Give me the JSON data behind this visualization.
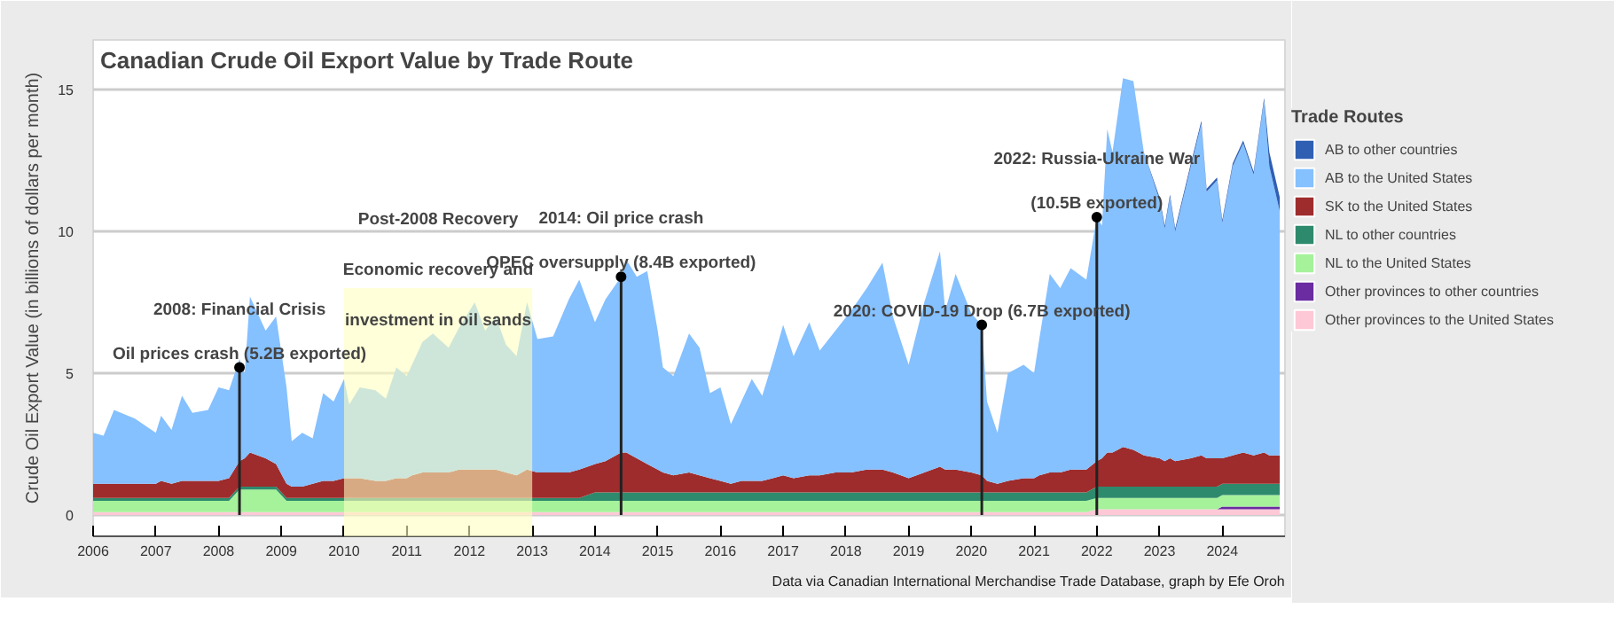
{
  "chart_data": {
    "type": "area",
    "stacked": true,
    "title": "Canadian Crude Oil Export Value by Trade Route",
    "ylabel": "Crude Oil Export Value (in billions of dollars per month)",
    "legend_title": "Trade Routes",
    "legend": "right",
    "grid": "y",
    "x": [
      "2006-01",
      "2006-03",
      "2006-05",
      "2006-09",
      "2007-01",
      "2007-02",
      "2007-04",
      "2007-06",
      "2007-08",
      "2007-11",
      "2008-01",
      "2008-03",
      "2008-05",
      "2008-06",
      "2008-07",
      "2008-10",
      "2008-12",
      "2009-02",
      "2009-03",
      "2009-05",
      "2009-07",
      "2009-09",
      "2009-11",
      "2010-01",
      "2010-02",
      "2010-04",
      "2010-07",
      "2010-09",
      "2010-11",
      "2011-01",
      "2011-02",
      "2011-04",
      "2011-06",
      "2011-09",
      "2011-11",
      "2012-02",
      "2012-04",
      "2012-06",
      "2012-08",
      "2012-10",
      "2012-12",
      "2013-02",
      "2013-05",
      "2013-08",
      "2013-10",
      "2014-01",
      "2014-03",
      "2014-06",
      "2014-07",
      "2014-09",
      "2014-11",
      "2015-01",
      "2015-02",
      "2015-04",
      "2015-07",
      "2015-09",
      "2015-11",
      "2016-01",
      "2016-03",
      "2016-05",
      "2016-07",
      "2016-09",
      "2016-11",
      "2017-01",
      "2017-03",
      "2017-06",
      "2017-08",
      "2017-11",
      "2018-02",
      "2018-05",
      "2018-08",
      "2018-10",
      "2019-01",
      "2019-04",
      "2019-07",
      "2019-08",
      "2019-10",
      "2020-01",
      "2020-03",
      "2020-04",
      "2020-06",
      "2020-08",
      "2020-11",
      "2021-01",
      "2021-02",
      "2021-04",
      "2021-06",
      "2021-08",
      "2021-11",
      "2022-01",
      "2022-02",
      "2022-03",
      "2022-04",
      "2022-06",
      "2022-08",
      "2022-10",
      "2023-01",
      "2023-02",
      "2023-03",
      "2023-04",
      "2023-07",
      "2023-09",
      "2023-10",
      "2023-12",
      "2024-01",
      "2024-03",
      "2024-05",
      "2024-07",
      "2024-09",
      "2024-10",
      "2024-12"
    ],
    "series": [
      {
        "name": "Other provinces to the United States",
        "color": "#ffc8d6",
        "values": [
          0.1,
          0.1,
          0.1,
          0.1,
          0.1,
          0.1,
          0.1,
          0.1,
          0.1,
          0.1,
          0.1,
          0.1,
          0.1,
          0.1,
          0.1,
          0.1,
          0.1,
          0.1,
          0.1,
          0.1,
          0.1,
          0.1,
          0.1,
          0.1,
          0.1,
          0.1,
          0.1,
          0.1,
          0.1,
          0.1,
          0.1,
          0.1,
          0.1,
          0.1,
          0.1,
          0.1,
          0.1,
          0.1,
          0.1,
          0.1,
          0.1,
          0.1,
          0.1,
          0.1,
          0.1,
          0.1,
          0.1,
          0.1,
          0.1,
          0.1,
          0.1,
          0.1,
          0.1,
          0.1,
          0.1,
          0.1,
          0.1,
          0.1,
          0.1,
          0.1,
          0.1,
          0.1,
          0.1,
          0.1,
          0.1,
          0.1,
          0.1,
          0.1,
          0.1,
          0.1,
          0.1,
          0.1,
          0.1,
          0.1,
          0.1,
          0.1,
          0.1,
          0.1,
          0.1,
          0.1,
          0.1,
          0.1,
          0.1,
          0.1,
          0.1,
          0.1,
          0.1,
          0.1,
          0.1,
          0.2,
          0.2,
          0.2,
          0.2,
          0.2,
          0.2,
          0.2,
          0.2,
          0.2,
          0.2,
          0.2,
          0.2,
          0.2,
          0.2,
          0.2,
          0.2,
          0.2,
          0.2,
          0.2,
          0.2,
          0.2,
          0.2
        ]
      },
      {
        "name": "Other provinces to other countries",
        "color": "#6a2ca0",
        "values": [
          0,
          0,
          0,
          0,
          0,
          0,
          0,
          0,
          0,
          0,
          0,
          0,
          0,
          0,
          0,
          0,
          0,
          0,
          0,
          0,
          0,
          0,
          0,
          0,
          0,
          0,
          0,
          0,
          0,
          0,
          0,
          0,
          0,
          0,
          0,
          0,
          0,
          0,
          0,
          0,
          0,
          0,
          0,
          0,
          0,
          0,
          0,
          0,
          0,
          0,
          0,
          0,
          0,
          0,
          0,
          0,
          0,
          0,
          0,
          0,
          0,
          0,
          0,
          0,
          0,
          0,
          0,
          0,
          0,
          0,
          0,
          0,
          0,
          0,
          0,
          0,
          0,
          0,
          0,
          0,
          0,
          0,
          0,
          0,
          0,
          0,
          0,
          0,
          0,
          0,
          0,
          0,
          0,
          0,
          0,
          0,
          0,
          0,
          0,
          0,
          0,
          0,
          0,
          0,
          0.1,
          0.1,
          0.1,
          0.1,
          0.1,
          0.1,
          0.1
        ]
      },
      {
        "name": "NL to the United States",
        "color": "#a6f29b",
        "values": [
          0.4,
          0.4,
          0.4,
          0.4,
          0.4,
          0.4,
          0.4,
          0.4,
          0.4,
          0.4,
          0.4,
          0.4,
          0.8,
          0.8,
          0.8,
          0.8,
          0.8,
          0.4,
          0.4,
          0.4,
          0.4,
          0.4,
          0.4,
          0.4,
          0.4,
          0.4,
          0.4,
          0.4,
          0.4,
          0.4,
          0.4,
          0.4,
          0.4,
          0.4,
          0.4,
          0.4,
          0.4,
          0.4,
          0.4,
          0.4,
          0.4,
          0.4,
          0.4,
          0.4,
          0.4,
          0.4,
          0.4,
          0.4,
          0.4,
          0.4,
          0.4,
          0.4,
          0.4,
          0.4,
          0.4,
          0.4,
          0.4,
          0.4,
          0.4,
          0.4,
          0.4,
          0.4,
          0.4,
          0.4,
          0.4,
          0.4,
          0.4,
          0.4,
          0.4,
          0.4,
          0.4,
          0.4,
          0.4,
          0.4,
          0.4,
          0.4,
          0.4,
          0.4,
          0.4,
          0.4,
          0.4,
          0.4,
          0.4,
          0.4,
          0.4,
          0.4,
          0.4,
          0.4,
          0.4,
          0.4,
          0.4,
          0.4,
          0.4,
          0.4,
          0.4,
          0.4,
          0.4,
          0.4,
          0.4,
          0.4,
          0.4,
          0.4,
          0.4,
          0.4,
          0.4,
          0.4,
          0.4,
          0.4,
          0.4,
          0.4,
          0.4
        ]
      },
      {
        "name": "NL to other countries",
        "color": "#2e8a6c",
        "values": [
          0.1,
          0.1,
          0.1,
          0.1,
          0.1,
          0.1,
          0.1,
          0.1,
          0.1,
          0.1,
          0.1,
          0.1,
          0.1,
          0.1,
          0.1,
          0.1,
          0.1,
          0.1,
          0.1,
          0.1,
          0.1,
          0.1,
          0.1,
          0.1,
          0.1,
          0.1,
          0.1,
          0.1,
          0.1,
          0.1,
          0.1,
          0.1,
          0.1,
          0.1,
          0.1,
          0.1,
          0.1,
          0.1,
          0.1,
          0.1,
          0.1,
          0.1,
          0.1,
          0.1,
          0.1,
          0.3,
          0.3,
          0.3,
          0.3,
          0.3,
          0.3,
          0.3,
          0.3,
          0.3,
          0.3,
          0.3,
          0.3,
          0.3,
          0.3,
          0.3,
          0.3,
          0.3,
          0.3,
          0.3,
          0.3,
          0.3,
          0.3,
          0.3,
          0.3,
          0.3,
          0.3,
          0.3,
          0.3,
          0.3,
          0.3,
          0.3,
          0.3,
          0.3,
          0.3,
          0.3,
          0.3,
          0.3,
          0.3,
          0.3,
          0.3,
          0.3,
          0.3,
          0.3,
          0.3,
          0.4,
          0.4,
          0.4,
          0.4,
          0.4,
          0.4,
          0.4,
          0.4,
          0.4,
          0.4,
          0.4,
          0.4,
          0.4,
          0.4,
          0.4,
          0.4,
          0.4,
          0.4,
          0.4,
          0.4,
          0.4,
          0.4
        ]
      },
      {
        "name": "SK to the United States",
        "color": "#9e2c2c",
        "values": [
          0.5,
          0.5,
          0.5,
          0.5,
          0.5,
          0.6,
          0.5,
          0.6,
          0.6,
          0.6,
          0.6,
          0.7,
          0.9,
          1.0,
          1.2,
          1.0,
          0.8,
          0.5,
          0.4,
          0.4,
          0.5,
          0.6,
          0.6,
          0.7,
          0.7,
          0.7,
          0.6,
          0.6,
          0.7,
          0.7,
          0.8,
          0.9,
          0.9,
          0.9,
          1.0,
          1.0,
          1.0,
          1.0,
          0.9,
          0.8,
          1.0,
          0.9,
          0.9,
          0.9,
          1.0,
          1.0,
          1.1,
          1.4,
          1.4,
          1.2,
          1.0,
          0.8,
          0.7,
          0.6,
          0.7,
          0.6,
          0.5,
          0.4,
          0.3,
          0.4,
          0.4,
          0.4,
          0.5,
          0.6,
          0.5,
          0.6,
          0.6,
          0.7,
          0.7,
          0.8,
          0.8,
          0.7,
          0.5,
          0.7,
          0.9,
          0.8,
          0.8,
          0.7,
          0.6,
          0.4,
          0.3,
          0.4,
          0.5,
          0.5,
          0.6,
          0.7,
          0.7,
          0.8,
          0.8,
          0.9,
          1.0,
          1.2,
          1.2,
          1.4,
          1.3,
          1.1,
          1.0,
          0.9,
          1.0,
          0.9,
          1.0,
          1.1,
          1.0,
          1.0,
          0.9,
          1.0,
          1.1,
          1.0,
          1.1,
          1.0,
          1.0
        ]
      },
      {
        "name": "AB to the United States",
        "color": "#85c0ff",
        "values": [
          1.8,
          1.7,
          2.6,
          2.3,
          1.8,
          2.3,
          1.9,
          3.0,
          2.4,
          2.5,
          3.3,
          3.1,
          3.6,
          3.0,
          5.5,
          4.5,
          5.2,
          3.4,
          1.6,
          1.9,
          1.6,
          3.1,
          2.8,
          3.5,
          2.6,
          3.2,
          3.2,
          2.9,
          3.9,
          3.6,
          3.9,
          4.6,
          4.9,
          4.4,
          5.0,
          5.9,
          4.9,
          5.4,
          4.5,
          4.2,
          5.9,
          4.7,
          4.8,
          6.1,
          6.7,
          5.0,
          5.7,
          6.2,
          6.8,
          6.4,
          6.8,
          4.9,
          3.7,
          3.5,
          4.9,
          4.5,
          3.0,
          3.3,
          2.1,
          2.8,
          3.6,
          3.0,
          4.1,
          5.3,
          4.3,
          5.4,
          4.4,
          5.0,
          5.7,
          6.4,
          7.3,
          5.5,
          4.0,
          6.0,
          7.6,
          5.6,
          6.9,
          5.6,
          5.3,
          2.8,
          1.8,
          3.8,
          4.0,
          3.7,
          4.8,
          7.0,
          6.5,
          7.1,
          6.7,
          8.6,
          8.2,
          11.4,
          10.6,
          13.0,
          13.0,
          10.7,
          9.1,
          8.2,
          9.2,
          8.1,
          10.3,
          11.7,
          9.4,
          9.8,
          8.3,
          10.2,
          10.9,
          9.9,
          12.4,
          10.2,
          8.6
        ]
      },
      {
        "name": "AB to other countries",
        "color": "#2f5fb3",
        "values": [
          0,
          0,
          0,
          0,
          0,
          0,
          0,
          0,
          0,
          0,
          0,
          0,
          0,
          0,
          0,
          0,
          0,
          0,
          0,
          0,
          0,
          0,
          0,
          0,
          0,
          0,
          0,
          0,
          0,
          0,
          0,
          0,
          0,
          0,
          0,
          0,
          0,
          0,
          0,
          0,
          0,
          0,
          0,
          0,
          0,
          0,
          0,
          0,
          0,
          0,
          0,
          0,
          0,
          0,
          0,
          0,
          0,
          0,
          0,
          0,
          0,
          0,
          0,
          0,
          0,
          0,
          0,
          0,
          0,
          0,
          0,
          0,
          0,
          0,
          0,
          0,
          0,
          0,
          0,
          0,
          0,
          0,
          0,
          0,
          0,
          0,
          0,
          0,
          0,
          0,
          0,
          0,
          0,
          0,
          0,
          0,
          0.1,
          0.1,
          0.1,
          0.1,
          0.1,
          0.1,
          0.1,
          0.1,
          0.1,
          0.1,
          0.1,
          0.1,
          0.1,
          0.5,
          0.5
        ]
      }
    ],
    "xlim": [
      "2006-01",
      "2025-01"
    ],
    "xticks": [
      "2006",
      "2007",
      "2008",
      "2009",
      "2010",
      "2011",
      "2012",
      "2013",
      "2014",
      "2015",
      "2016",
      "2017",
      "2018",
      "2019",
      "2020",
      "2021",
      "2022",
      "2023",
      "2024"
    ],
    "ylim": [
      -0.75,
      16.75
    ],
    "yticks": [
      0,
      5,
      10,
      15
    ],
    "bands": [
      {
        "axis": "x",
        "from": "2010-01",
        "to": "2013-01",
        "label": "Post-2008 Recovery\nEconomic recovery and\ninvestment in oil sands",
        "color": "#ffffc0"
      }
    ],
    "annotations": [
      {
        "text": "Oil prices crash (5.2B exported)",
        "x": "2008-05",
        "y": 5.2
      },
      {
        "text": "2008: Financial Crisis",
        "x": "2008-05",
        "y": 5.2
      },
      {
        "text": "OPEC oversupply (8.4B exported)",
        "x": "2014-06",
        "y": 8.4
      },
      {
        "text": "2014: Oil price crash",
        "x": "2014-06",
        "y": 8.4
      },
      {
        "text": "2020: COVID-19 Drop (6.7B exported)",
        "x": "2020-03",
        "y": 6.7
      },
      {
        "text": "(10.5B exported)",
        "x": "2022-01",
        "y": 10.5
      },
      {
        "text": "2022: Russia-Ukraine War",
        "x": "2022-01",
        "y": 10.5
      },
      "Data via Canadian International Merchandise Trade Database, graph by Efe Oroh"
    ]
  }
}
